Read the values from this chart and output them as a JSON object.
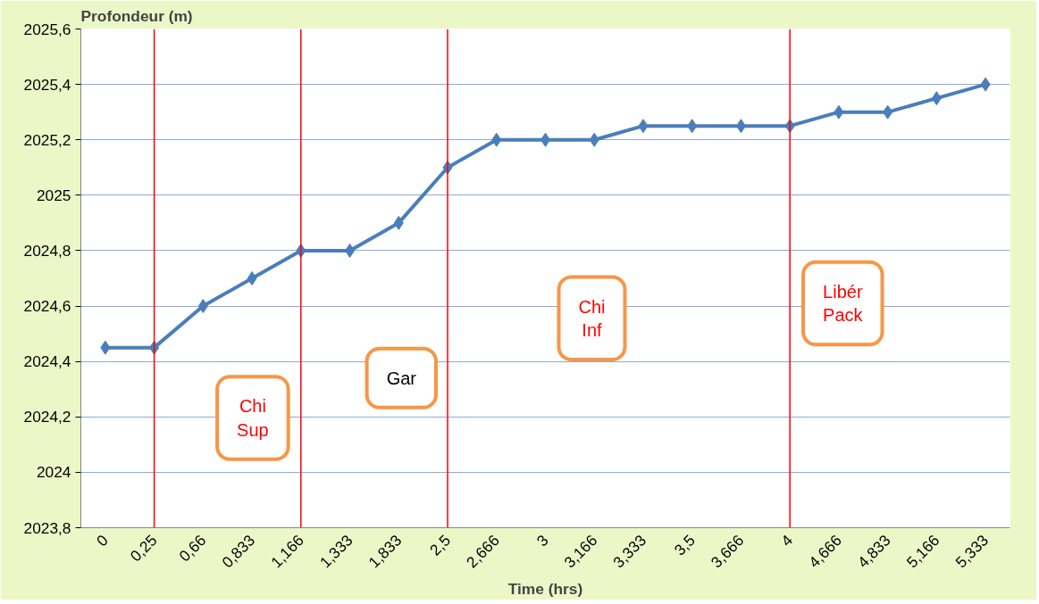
{
  "chart_data": {
    "type": "line",
    "xlabel": "Time (hrs)",
    "ylabel": "Profondeur (m)",
    "categories": [
      "0",
      "0,25",
      "0,66",
      "0,833",
      "1,166",
      "1,333",
      "1,833",
      "2,5",
      "2,666",
      "3",
      "3,166",
      "3,333",
      "3,5",
      "3,666",
      "4",
      "4,666",
      "4,833",
      "5,166",
      "5,333"
    ],
    "series": [
      {
        "color": "#4a7ebb",
        "values": [
          2024.45,
          2024.45,
          2024.6,
          2024.7,
          2024.8,
          2024.8,
          2024.9,
          2025.1,
          2025.2,
          2025.2,
          2025.2,
          2025.25,
          2025.25,
          2025.25,
          2025.25,
          2025.3,
          2025.3,
          2025.35,
          2025.4
        ]
      }
    ],
    "ylim": [
      2023.8,
      2025.6
    ],
    "yticks": [
      {
        "value": 2023.8,
        "label": "2023,8"
      },
      2024,
      {
        "value": 2024.2,
        "label": "2024,2"
      },
      {
        "value": 2024.4,
        "label": "2024,4"
      },
      {
        "value": 2024.6,
        "label": "2024,6"
      },
      {
        "value": 2024.8,
        "label": "2024,8"
      },
      2025,
      {
        "value": 2025.2,
        "label": "2025,2"
      },
      {
        "value": 2025.4,
        "label": "2025,4"
      },
      {
        "value": 2025.6,
        "label": "2025,6"
      }
    ],
    "grid": "y",
    "marker": "diamond",
    "line_style": "solid",
    "ref_lines": [
      {
        "axis": "x",
        "value": "0,25",
        "color": "#ff0000"
      },
      {
        "axis": "x",
        "value": "1,166",
        "color": "#ff0000"
      },
      {
        "axis": "x",
        "value": "2,5",
        "color": "#ff0000"
      },
      {
        "axis": "x",
        "value": "4",
        "color": "#ff0000"
      }
    ],
    "annotations": [
      "Chi\nSup",
      "Gar",
      "Chi\nInf",
      "Libér\nPack"
    ]
  }
}
